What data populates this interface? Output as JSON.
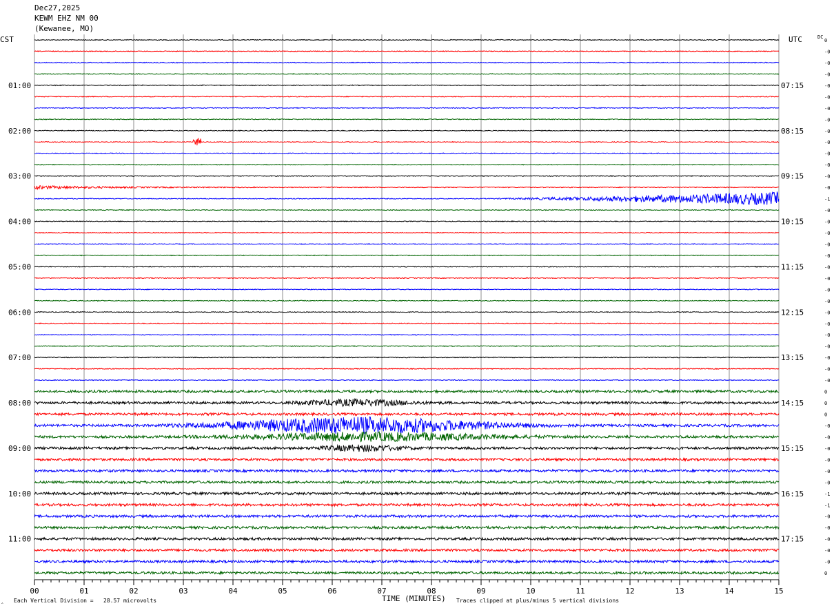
{
  "header": {
    "date": "Dec27,2025",
    "station": "KEWM EHZ NM 00",
    "location": "(Kewanee, MO)"
  },
  "left_axis_label": "CST",
  "right_axis_label": "UTC",
  "dc_label": "DC",
  "footer": {
    "scale_text": "Each Vertical Division =   28.57 microvolts",
    "clip_text": "Traces clipped at plus/minus 5 vertical divisions",
    "corner_mark": "‸"
  },
  "chart_data": {
    "type": "line",
    "title": "",
    "xlabel": "TIME (MINUTES)",
    "xlim": [
      0,
      15
    ],
    "x_ticks": [
      "00",
      "01",
      "02",
      "03",
      "04",
      "05",
      "06",
      "07",
      "08",
      "09",
      "10",
      "11",
      "12",
      "13",
      "14",
      "15"
    ],
    "rows_per_hour": 4,
    "minutes_per_row": 15,
    "row_count": 48,
    "trace_colors": [
      "#000000",
      "#ff0000",
      "#0000ff",
      "#006400"
    ],
    "left_hour_labels": [
      "01:00",
      "02:00",
      "03:00",
      "04:00",
      "05:00",
      "06:00",
      "07:00",
      "08:00",
      "09:00",
      "10:00",
      "11:00"
    ],
    "right_hour_labels": [
      "07:15",
      "08:15",
      "09:15",
      "10:15",
      "11:15",
      "12:15",
      "13:15",
      "14:15",
      "15:15",
      "16:15",
      "17:15"
    ],
    "dc_offsets": [
      "0",
      "-0",
      "-0",
      "-0",
      "-0",
      "-0",
      "-0",
      "-0",
      "-0",
      "-0",
      "-0",
      "-0",
      "-0",
      "-0",
      "-1",
      "-0",
      "-0",
      "-0",
      "-0",
      "-0",
      "-0",
      "-0",
      "-0",
      "-0",
      "-0",
      "-0",
      "-0",
      "-0",
      "-0",
      "-0",
      "-0",
      "0",
      "0",
      "0",
      "-0",
      "-0",
      "-0",
      "-0",
      "-0",
      "-0",
      "-1",
      "-1",
      "-0",
      "-0",
      "-0",
      "-0",
      "-0",
      "0"
    ],
    "amplitude_scale": "28.57 microvolts per vertical division",
    "clip_divisions": 5,
    "events": [
      {
        "row": 13,
        "start_min": 0.0,
        "end_min": 4.5,
        "peak": 0.7,
        "description": "decaying coda"
      },
      {
        "row": 9,
        "start_min": 3.2,
        "end_min": 3.35,
        "peak": 1.4
      },
      {
        "row": 14,
        "start_min": 9.0,
        "end_min": 15.0,
        "peak": 2.8,
        "description": "growing signal"
      },
      {
        "row": 34,
        "start_min": 2.5,
        "end_min": 11.0,
        "peak": 3.5,
        "center_min": 6.5
      },
      {
        "row": 35,
        "start_min": 3.0,
        "end_min": 11.0,
        "peak": 1.7,
        "center_min": 6.8
      },
      {
        "row": 32,
        "start_min": 5.0,
        "end_min": 8.5,
        "peak": 1.2,
        "center_min": 6.5
      },
      {
        "row": 36,
        "start_min": 5.5,
        "end_min": 8.0,
        "peak": 1.2,
        "center_min": 6.6
      }
    ]
  }
}
